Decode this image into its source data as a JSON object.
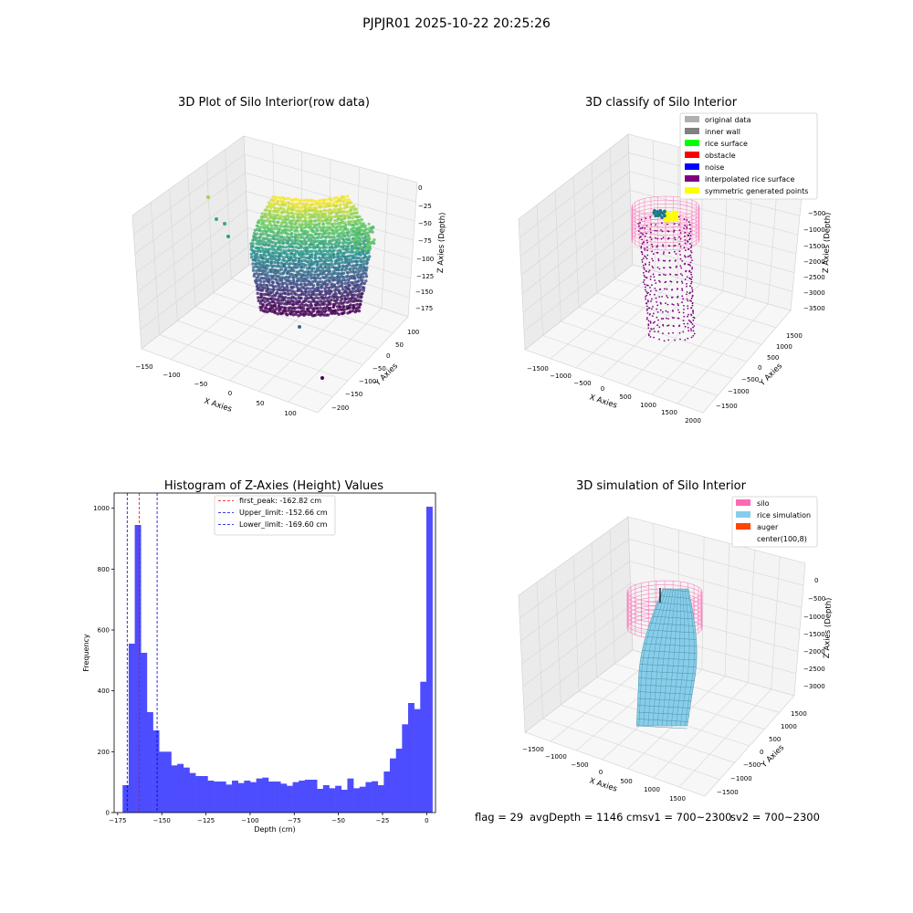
{
  "suptitle": "PJPJR01 2025-10-22 20:25:26",
  "footer": {
    "flag": "flag = 29",
    "avg": "avgDepth = 1146 cmsv1 = 700~2300",
    "sv2": "sv2 = 700~2300"
  },
  "colors": {
    "histogram_bar": "#4d4dff",
    "peak_line": "#ff0000",
    "limit_line": "#0000cc",
    "silo": "#ff69b4",
    "rice_simulation": "#87ceeb",
    "auger": "#ff4500",
    "interpolated": "#800080",
    "pane": "#f2f2f2"
  },
  "chart_data": [
    {
      "type": "scatter",
      "projection": "3d",
      "title": "3D Plot of Silo Interior(row data)",
      "xlabel": "X Axies",
      "ylabel": "Y Axies",
      "zlabel": "Z Axies (Depth)",
      "x_ticks": [
        "−150",
        "−100",
        "−50",
        "0",
        "50",
        "100"
      ],
      "y_ticks": [
        "100",
        "50",
        "0",
        "−50",
        "−100",
        "−150",
        "−200"
      ],
      "z_ticks": [
        "0",
        "−25",
        "−50",
        "−75",
        "−100",
        "−125",
        "−150",
        "−175"
      ],
      "xlim": [
        -160,
        120
      ],
      "ylim": [
        -200,
        110
      ],
      "zlim": [
        -175,
        0
      ],
      "colormap": "viridis",
      "grid": true
    },
    {
      "type": "scatter",
      "projection": "3d",
      "title": "3D classify of Silo Interior",
      "xlabel": "X Axies",
      "ylabel": "Y Axies",
      "zlabel": "Z Axies (Depth)",
      "x_ticks": [
        "−1500",
        "−1000",
        "−500",
        "0",
        "500",
        "1000",
        "1500",
        "2000"
      ],
      "y_ticks": [
        "1500",
        "1000",
        "500",
        "0",
        "−500",
        "−1000",
        "−1500"
      ],
      "z_ticks": [
        "0",
        "−500",
        "−1000",
        "−1500",
        "−2000",
        "−2500",
        "−3000",
        "−3500"
      ],
      "legend_position": "top-right",
      "legend": [
        {
          "label": "original data",
          "color": "#b0b0b0"
        },
        {
          "label": "inner wall",
          "color": "#808080"
        },
        {
          "label": "rice surface",
          "color": "#00ff00"
        },
        {
          "label": "obstacle",
          "color": "#ff0000"
        },
        {
          "label": "noise",
          "color": "#0000ff"
        },
        {
          "label": "interpolated rice surface",
          "color": "#800080"
        },
        {
          "label": "symmetric generated points",
          "color": "#ffff00"
        }
      ],
      "grid": true
    },
    {
      "type": "bar",
      "title": "Histogram of Z-Axies (Height) Values",
      "xlabel": "Depth (cm)",
      "ylabel": "Frequency",
      "xlim": [
        -177,
        5
      ],
      "ylim": [
        0,
        1050
      ],
      "x_ticks": [
        -175,
        -150,
        -125,
        -100,
        -75,
        -50,
        -25,
        0
      ],
      "x_tick_labels": [
        "−175",
        "−150",
        "−125",
        "−100",
        "−75",
        "−50",
        "−25",
        "0"
      ],
      "y_ticks": [
        0,
        200,
        400,
        600,
        800,
        1000
      ],
      "bin_start": -172.2,
      "bin_width": 3.44,
      "values": [
        90,
        555,
        945,
        525,
        330,
        270,
        200,
        200,
        155,
        160,
        148,
        130,
        120,
        120,
        105,
        102,
        102,
        92,
        105,
        97,
        105,
        100,
        112,
        115,
        102,
        102,
        95,
        88,
        100,
        105,
        108,
        108,
        78,
        90,
        80,
        88,
        75,
        112,
        80,
        85,
        100,
        103,
        90,
        135,
        178,
        210,
        290,
        360,
        340,
        430,
        1005
      ],
      "vlines": [
        {
          "label": "first_peak: -162.82 cm",
          "x": -162.82,
          "color": "#ff0000"
        },
        {
          "label": "Upper_limit: -152.66 cm",
          "x": -152.66,
          "color": "#0000cc"
        },
        {
          "label": "Lower_limit: -169.60 cm",
          "x": -169.6,
          "color": "#0000cc"
        }
      ],
      "legend_position": "upper-center"
    },
    {
      "type": "surface",
      "projection": "3d",
      "title": "3D simulation of Silo Interior",
      "xlabel": "X Axies",
      "ylabel": "Y Axies",
      "zlabel": "Z Axies (Depth)",
      "x_ticks": [
        "−1500",
        "−1000",
        "−500",
        "0",
        "500",
        "1000",
        "1500"
      ],
      "y_ticks": [
        "1500",
        "1000",
        "500",
        "0",
        "−500",
        "−1000",
        "−1500"
      ],
      "z_ticks": [
        "0",
        "−500",
        "−1000",
        "−1500",
        "−2000",
        "−2500",
        "−3000"
      ],
      "legend_position": "top-right",
      "legend": [
        {
          "label": "silo",
          "color": "#ff69b4"
        },
        {
          "label": "rice simulation",
          "color": "#87ceeb"
        },
        {
          "label": "auger",
          "color": "#ff4500"
        },
        {
          "label": "center(100,8)",
          "color": "#ffffff"
        }
      ],
      "grid": true
    }
  ]
}
